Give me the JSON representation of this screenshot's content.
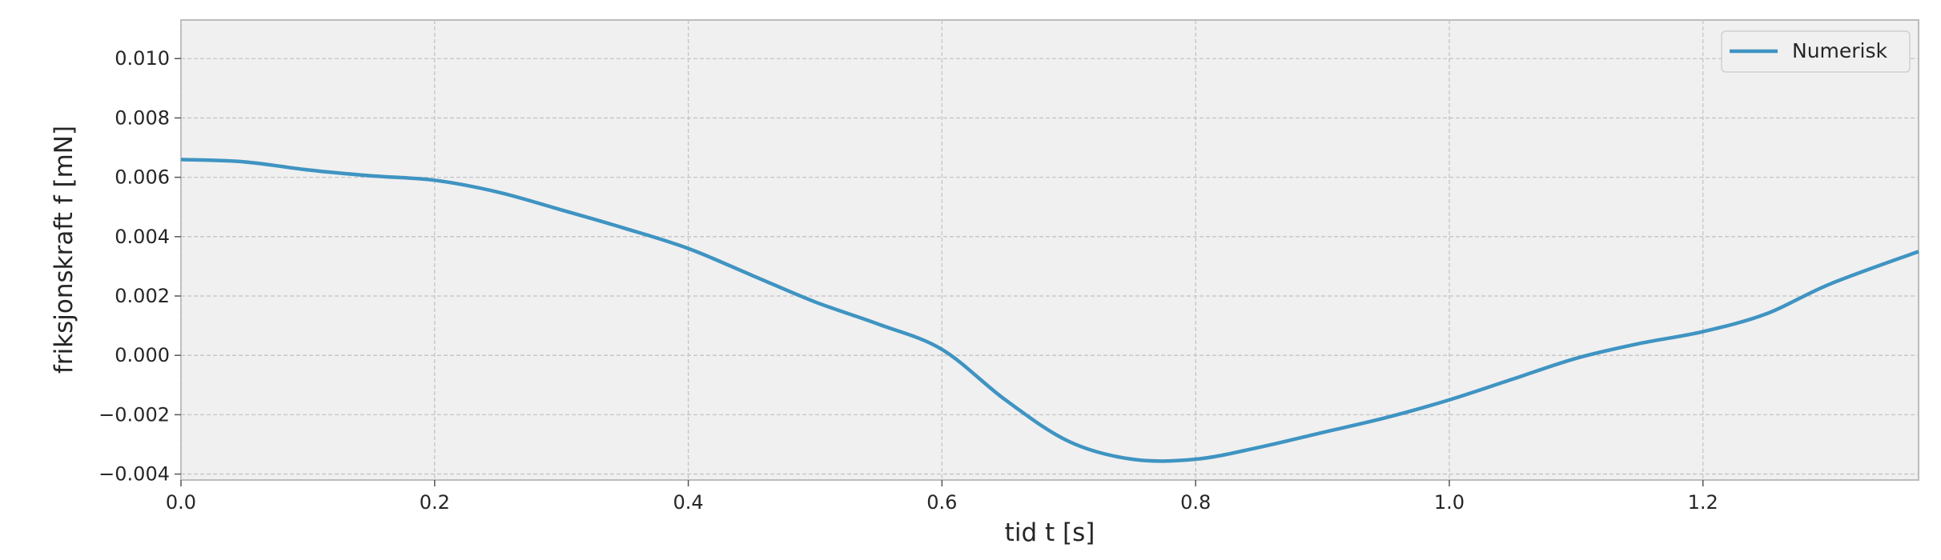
{
  "chart_data": {
    "type": "line",
    "title": "",
    "xlabel": "tid t [s]",
    "ylabel": "friksjonskraft f [mN]",
    "xlim": [
      0,
      1.37
    ],
    "ylim": [
      -0.0042,
      0.0113
    ],
    "x_ticks": [
      0.0,
      0.2,
      0.4,
      0.6,
      0.8,
      1.0,
      1.2
    ],
    "x_tick_labels": [
      "0.0",
      "0.2",
      "0.4",
      "0.6",
      "0.8",
      "1.0",
      "1.2"
    ],
    "y_ticks": [
      -0.004,
      -0.002,
      0.0,
      0.002,
      0.004,
      0.006,
      0.008,
      0.01
    ],
    "y_tick_labels": [
      "−0.004",
      "−0.002",
      "0.000",
      "0.002",
      "0.004",
      "0.006",
      "0.008",
      "0.010"
    ],
    "grid": true,
    "legend_position": "top-right",
    "series": [
      {
        "name": "Numerisk",
        "color": "#3f94c2",
        "x": [
          0.0,
          0.05,
          0.1,
          0.15,
          0.2,
          0.25,
          0.3,
          0.35,
          0.4,
          0.45,
          0.5,
          0.55,
          0.6,
          0.65,
          0.7,
          0.75,
          0.8,
          0.85,
          0.9,
          0.95,
          1.0,
          1.05,
          1.1,
          1.15,
          1.2,
          1.25,
          1.3,
          1.37
        ],
        "y": [
          0.0066,
          0.00652,
          0.00625,
          0.00605,
          0.0059,
          0.0055,
          0.0049,
          0.00428,
          0.0036,
          0.0027,
          0.0018,
          0.00105,
          0.0002,
          -0.0015,
          -0.0029,
          -0.0035,
          -0.0035,
          -0.0031,
          -0.0026,
          -0.0021,
          -0.0015,
          -0.0008,
          -0.0001,
          0.0004,
          0.0008,
          0.0014,
          0.0024,
          0.0035
        ]
      }
    ]
  }
}
